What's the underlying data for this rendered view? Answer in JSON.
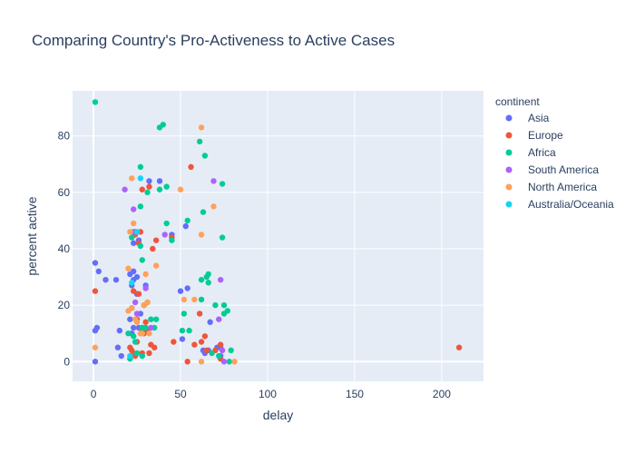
{
  "chart_data": {
    "type": "scatter",
    "title": "Comparing Country's Pro-Activeness to Active Cases",
    "xlabel": "delay",
    "ylabel": "percent active",
    "xlim": [
      -12,
      224
    ],
    "ylim": [
      -7,
      96
    ],
    "x_ticks": [
      0,
      50,
      100,
      150,
      200
    ],
    "y_ticks": [
      0,
      20,
      40,
      60,
      80
    ],
    "grid": true,
    "legend": {
      "title": "continent",
      "position": "right"
    },
    "series": [
      {
        "name": "Asia",
        "color": "#636efa",
        "points": [
          [
            1,
            0
          ],
          [
            1,
            35
          ],
          [
            1,
            11
          ],
          [
            2,
            12
          ],
          [
            3,
            32
          ],
          [
            7,
            29
          ],
          [
            13,
            29
          ],
          [
            14,
            5
          ],
          [
            15,
            11
          ],
          [
            16,
            2
          ],
          [
            21,
            15
          ],
          [
            21,
            31
          ],
          [
            22,
            10
          ],
          [
            22,
            27
          ],
          [
            22,
            19
          ],
          [
            23,
            32
          ],
          [
            23,
            12
          ],
          [
            23,
            29
          ],
          [
            23,
            42
          ],
          [
            24,
            46
          ],
          [
            25,
            30
          ],
          [
            25,
            24
          ],
          [
            26,
            12
          ],
          [
            26,
            43
          ],
          [
            27,
            17
          ],
          [
            28,
            12
          ],
          [
            29,
            11
          ],
          [
            30,
            27
          ],
          [
            32,
            64
          ],
          [
            38,
            64
          ],
          [
            45,
            45
          ],
          [
            50,
            25
          ],
          [
            51,
            8
          ],
          [
            53,
            48
          ],
          [
            54,
            26
          ],
          [
            63,
            4
          ],
          [
            64,
            3
          ],
          [
            66,
            4
          ],
          [
            67,
            14
          ],
          [
            71,
            5
          ],
          [
            73,
            5
          ],
          [
            73,
            2
          ]
        ]
      },
      {
        "name": "Europe",
        "color": "#ef553b",
        "points": [
          [
            1,
            25
          ],
          [
            21,
            5
          ],
          [
            22,
            4
          ],
          [
            23,
            3
          ],
          [
            23,
            25
          ],
          [
            24,
            2
          ],
          [
            24,
            45
          ],
          [
            25,
            7
          ],
          [
            25,
            15
          ],
          [
            26,
            24
          ],
          [
            26,
            42
          ],
          [
            27,
            46
          ],
          [
            28,
            61
          ],
          [
            28,
            11
          ],
          [
            28,
            3
          ],
          [
            29,
            20
          ],
          [
            29,
            10
          ],
          [
            30,
            14
          ],
          [
            31,
            11
          ],
          [
            32,
            62
          ],
          [
            32,
            3
          ],
          [
            33,
            6
          ],
          [
            34,
            40
          ],
          [
            35,
            5
          ],
          [
            36,
            43
          ],
          [
            45,
            44
          ],
          [
            46,
            7
          ],
          [
            54,
            0
          ],
          [
            56,
            69
          ],
          [
            58,
            6
          ],
          [
            61,
            17
          ],
          [
            62,
            7
          ],
          [
            64,
            9
          ],
          [
            65,
            4
          ],
          [
            70,
            4
          ],
          [
            73,
            6
          ],
          [
            73,
            1
          ],
          [
            210,
            5
          ]
        ]
      },
      {
        "name": "Africa",
        "color": "#00cc96",
        "points": [
          [
            1,
            92
          ],
          [
            20,
            10
          ],
          [
            21,
            1
          ],
          [
            22,
            44
          ],
          [
            23,
            9
          ],
          [
            24,
            7
          ],
          [
            25,
            3
          ],
          [
            27,
            69
          ],
          [
            27,
            55
          ],
          [
            27,
            41
          ],
          [
            28,
            36
          ],
          [
            28,
            12
          ],
          [
            28,
            2
          ],
          [
            30,
            12
          ],
          [
            31,
            60
          ],
          [
            31,
            21
          ],
          [
            33,
            15
          ],
          [
            35,
            12
          ],
          [
            36,
            15
          ],
          [
            38,
            83
          ],
          [
            38,
            61
          ],
          [
            40,
            84
          ],
          [
            42,
            62
          ],
          [
            42,
            49
          ],
          [
            45,
            43
          ],
          [
            51,
            11
          ],
          [
            52,
            17
          ],
          [
            54,
            50
          ],
          [
            55,
            11
          ],
          [
            61,
            78
          ],
          [
            62,
            29
          ],
          [
            62,
            22
          ],
          [
            63,
            53
          ],
          [
            64,
            73
          ],
          [
            65,
            30
          ],
          [
            66,
            31
          ],
          [
            66,
            28
          ],
          [
            68,
            3
          ],
          [
            70,
            20
          ],
          [
            72,
            2
          ],
          [
            74,
            63
          ],
          [
            74,
            44
          ],
          [
            75,
            20
          ],
          [
            75,
            17
          ],
          [
            77,
            18
          ],
          [
            78,
            0
          ],
          [
            79,
            4
          ]
        ]
      },
      {
        "name": "South America",
        "color": "#ab63fa",
        "points": [
          [
            18,
            61
          ],
          [
            23,
            54
          ],
          [
            23,
            46
          ],
          [
            24,
            21
          ],
          [
            25,
            17
          ],
          [
            30,
            26
          ],
          [
            33,
            12
          ],
          [
            41,
            45
          ],
          [
            69,
            64
          ],
          [
            72,
            15
          ],
          [
            73,
            29
          ],
          [
            74,
            4
          ],
          [
            75,
            0
          ]
        ]
      },
      {
        "name": "North America",
        "color": "#ffa15a",
        "points": [
          [
            1,
            5
          ],
          [
            20,
            33
          ],
          [
            20,
            18
          ],
          [
            21,
            46
          ],
          [
            22,
            65
          ],
          [
            22,
            19
          ],
          [
            23,
            49
          ],
          [
            24,
            15
          ],
          [
            25,
            14
          ],
          [
            27,
            10
          ],
          [
            28,
            10
          ],
          [
            29,
            20
          ],
          [
            30,
            31
          ],
          [
            31,
            21
          ],
          [
            32,
            10
          ],
          [
            36,
            34
          ],
          [
            50,
            61
          ],
          [
            52,
            22
          ],
          [
            58,
            22
          ],
          [
            62,
            0
          ],
          [
            62,
            83
          ],
          [
            62,
            45
          ],
          [
            69,
            55
          ],
          [
            81,
            0
          ]
        ]
      },
      {
        "name": "Australia/Oceania",
        "color": "#19d3f3",
        "points": [
          [
            21,
            2
          ],
          [
            22,
            28
          ],
          [
            25,
            46
          ],
          [
            27,
            65
          ]
        ]
      }
    ]
  }
}
